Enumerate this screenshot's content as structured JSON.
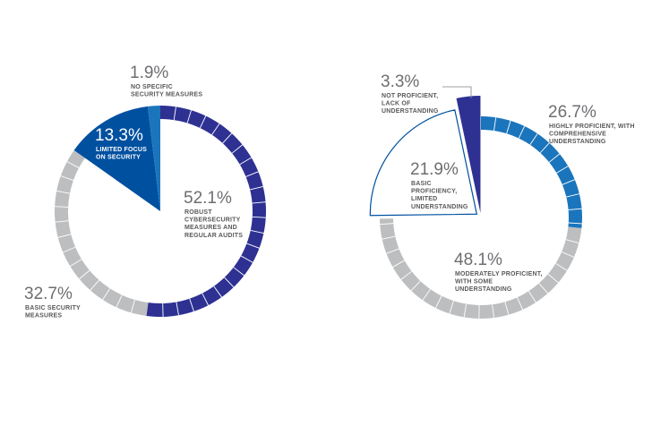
{
  "chart_data": [
    {
      "type": "pie",
      "title": "",
      "slices": [
        {
          "label_lines": [
            "ROBUST",
            "CYBERSECURITY",
            "MEASURES AND",
            "REGULAR AUDITS"
          ],
          "value": 52.1,
          "display": "52.1%",
          "color": "#2e3192",
          "style": "ring"
        },
        {
          "label_lines": [
            "BASIC SECURITY",
            "MEASURES"
          ],
          "value": 32.7,
          "display": "32.7%",
          "color": "#bcbec0",
          "style": "ring"
        },
        {
          "label_lines": [
            "LIMITED FOCUS",
            "ON SECURITY"
          ],
          "value": 13.3,
          "display": "13.3%",
          "color": "#0050a0",
          "style": "wedge"
        },
        {
          "label_lines": [
            "NO SPECIFIC",
            "SECURITY MEASURES"
          ],
          "value": 1.9,
          "display": "1.9%",
          "color": "#1b75bc",
          "style": "wedge"
        }
      ]
    },
    {
      "type": "pie",
      "title": "",
      "slices": [
        {
          "label_lines": [
            "HIGHLY PROFICIENT, WITH",
            "COMPREHENSIVE",
            "UNDERSTANDING"
          ],
          "value": 26.7,
          "display": "26.7%",
          "color": "#1b75bc",
          "style": "ring"
        },
        {
          "label_lines": [
            "MODERATELY PROFICIENT,",
            "WITH SOME",
            "UNDERSTANDING"
          ],
          "value": 48.1,
          "display": "48.1%",
          "color": "#bcbec0",
          "style": "ring"
        },
        {
          "label_lines": [
            "BASIC",
            "PROFICIENCY,",
            "LIMITED",
            "UNDERSTANDING"
          ],
          "value": 21.9,
          "display": "21.9%",
          "color": "#ffffff",
          "stroke": "#0050a0",
          "style": "wedge"
        },
        {
          "label_lines": [
            "NOT PROFICIENT,",
            "LACK OF",
            "UNDERSTANDING"
          ],
          "value": 3.3,
          "display": "3.3%",
          "color": "#2e3192",
          "style": "wedge"
        }
      ]
    }
  ]
}
